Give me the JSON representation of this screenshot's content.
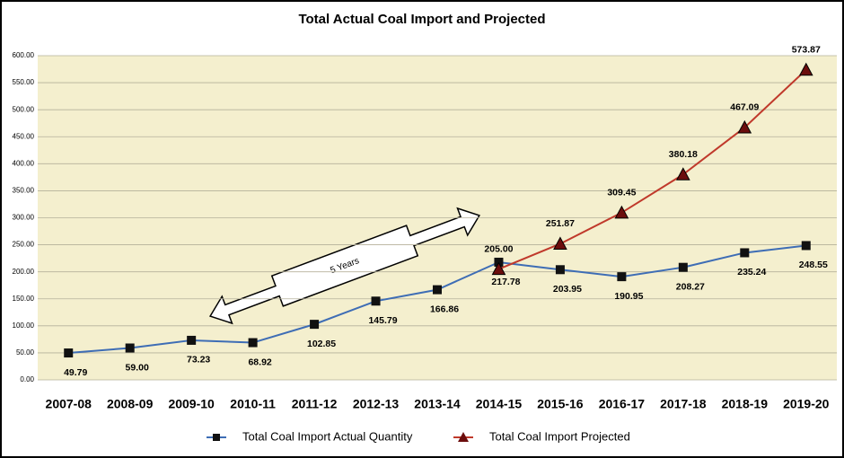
{
  "chart_data": {
    "type": "line",
    "title": "Total Actual Coal Import and Projected",
    "annotation": "5 Years",
    "categories": [
      "2007-08",
      "2008-09",
      "2009-10",
      "2010-11",
      "2011-12",
      "2012-13",
      "2013-14",
      "2014-15",
      "2015-16",
      "2016-17",
      "2017-18",
      "2018-19",
      "2019-20"
    ],
    "series": [
      {
        "name": "Total Coal Import Actual Quantity",
        "color": "#3e6db5",
        "marker": "square",
        "values": [
          49.79,
          59.0,
          73.23,
          68.92,
          102.85,
          145.79,
          166.86,
          217.78,
          203.95,
          190.95,
          208.27,
          235.24,
          248.55
        ],
        "value_labels": [
          "49.79",
          "59.00",
          "73.23",
          "68.92",
          "102.85",
          "145.79",
          "166.86",
          "217.78",
          "203.95",
          "190.95",
          "208.27",
          "235.24",
          "248.55"
        ]
      },
      {
        "name": "Total Coal Import Projected",
        "color": "#c0392b",
        "marker": "triangle",
        "values": [
          null,
          null,
          null,
          null,
          null,
          null,
          null,
          205.0,
          251.87,
          309.45,
          380.18,
          467.09,
          573.87
        ],
        "value_labels": [
          null,
          null,
          null,
          null,
          null,
          null,
          null,
          "205.00",
          "251.87",
          "309.45",
          "380.18",
          "467.09",
          "573.87"
        ]
      }
    ],
    "ylim": [
      0,
      600
    ],
    "yticks": [
      {
        "value": 0,
        "label": "0.00"
      },
      {
        "value": 50,
        "label": "50.00"
      },
      {
        "value": 100,
        "label": "100.00"
      },
      {
        "value": 150,
        "label": "150.00"
      },
      {
        "value": 200,
        "label": "200.00"
      },
      {
        "value": 250,
        "label": "250.00"
      },
      {
        "value": 300,
        "label": "300.00"
      },
      {
        "value": 350,
        "label": "350.00"
      },
      {
        "value": 400,
        "label": "400.00"
      },
      {
        "value": 450,
        "label": "450.00"
      },
      {
        "value": 500,
        "label": "500.00"
      },
      {
        "value": 550,
        "label": "550.00"
      },
      {
        "value": 600,
        "label": "600.00"
      }
    ],
    "grid": true,
    "legend": "bottom"
  }
}
